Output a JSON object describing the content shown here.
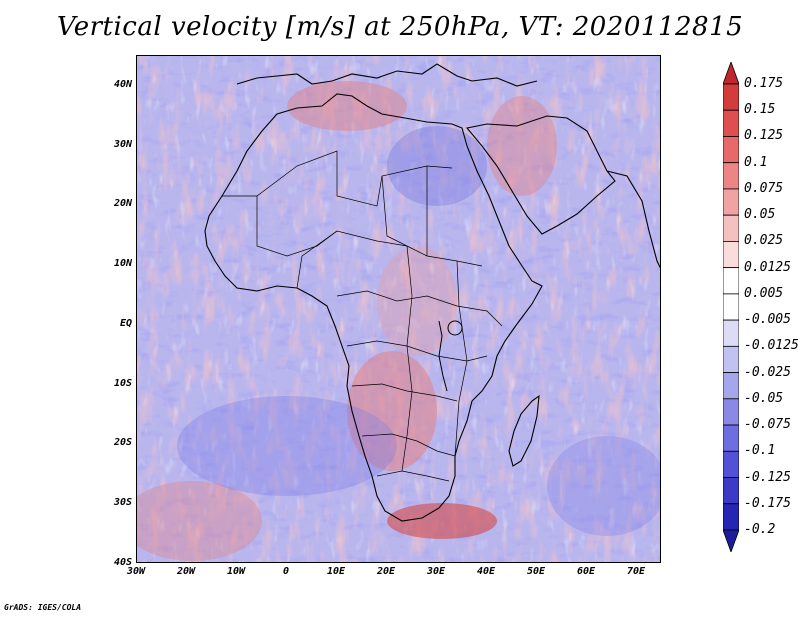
{
  "title": "Vertical velocity [m/s] at 250hPa, VT: 2020112815",
  "footer": "GrADS: IGES/COLA",
  "map": {
    "lat_labels": [
      "40N",
      "30N",
      "20N",
      "10N",
      "EQ",
      "10S",
      "20S",
      "30S",
      "40S"
    ],
    "lon_labels": [
      "30W",
      "20W",
      "10W",
      "0",
      "10E",
      "20E",
      "30E",
      "40E",
      "50E",
      "60E",
      "70E"
    ],
    "lat_range": [
      -40,
      45
    ],
    "lon_range": [
      -30,
      75
    ]
  },
  "colorbar": {
    "labels": [
      "0.175",
      "0.15",
      "0.125",
      "0.1",
      "0.075",
      "0.05",
      "0.025",
      "0.0125",
      "0.005",
      "-0.005",
      "-0.0125",
      "-0.025",
      "-0.05",
      "-0.075",
      "-0.1",
      "-0.125",
      "-0.175",
      "-0.2"
    ],
    "colors": [
      "#c0262b",
      "#d23c3c",
      "#e04f4f",
      "#e66a6a",
      "#ec8686",
      "#f0a3a3",
      "#f5c0c0",
      "#f9dddd",
      "#ffffff",
      "#ffffff",
      "#dcdcf7",
      "#c2c2f2",
      "#a6a6ec",
      "#8a8ae6",
      "#6e6ee0",
      "#5252d6",
      "#3b3bc8",
      "#2626b4",
      "#1c1c9c"
    ]
  },
  "palette": {
    "ocean_base": "#b9b6ee",
    "warm": "#e98a8a",
    "cool": "#7a7ae4",
    "coast": "#000000"
  }
}
